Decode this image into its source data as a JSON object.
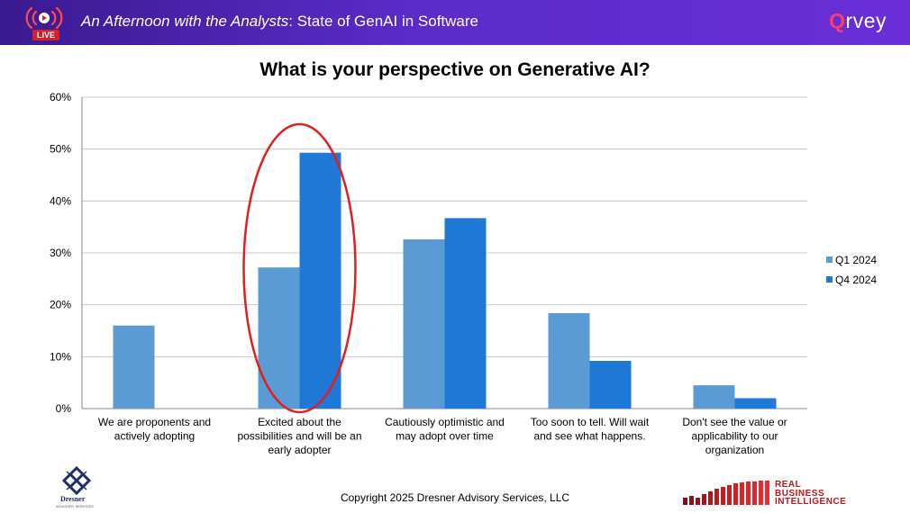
{
  "header": {
    "live_label": "LIVE",
    "title_em": "An Afternoon with the Analysts",
    "title_rest": ": State of GenAI in Software",
    "brand": {
      "first": "Q",
      "rest": "rvey"
    }
  },
  "footer": {
    "copyright": "Copyright 2025 Dresner Advisory Services, LLC",
    "dresner_wordmark": "Dresner",
    "dresner_sub": "ADVISORY SERVICES",
    "rbi_lines": [
      "REAL",
      "BUSINESS",
      "INTELLIGENCE"
    ]
  },
  "colors": {
    "header_start": "#3a1a8f",
    "header_end": "#6a2ed8",
    "series_q1": "#5b9bd5",
    "series_q4": "#1f78d6",
    "highlight": "#e02020",
    "grid": "#c8c8c8"
  },
  "chart_data": {
    "type": "bar",
    "title": "What is your perspective on Generative AI?",
    "xlabel": "",
    "ylabel": "",
    "ylim": [
      0,
      60
    ],
    "y_ticks": [
      "0%",
      "10%",
      "20%",
      "30%",
      "40%",
      "50%",
      "60%"
    ],
    "categories": [
      "We are proponents and actively adopting",
      "Excited about the possibilities and will be an early adopter",
      "Cautiously optimistic and may adopt over time",
      "Too soon to tell. Will wait and see what happens.",
      "Don't see the value or applicability to our organization"
    ],
    "category_lines": [
      [
        "We are proponents and",
        "actively adopting"
      ],
      [
        "Excited about the",
        "possibilities and will be an",
        "early adopter"
      ],
      [
        "Cautiously optimistic and",
        "may adopt over time"
      ],
      [
        "Too soon to tell. Will wait",
        "and see what happens."
      ],
      [
        "Don't see the value or",
        "applicability to our",
        "organization"
      ]
    ],
    "series": [
      {
        "name": "Q1 2024",
        "color": "#5b9bd5",
        "values": [
          16,
          27.2,
          32.6,
          18.4,
          4.5
        ]
      },
      {
        "name": "Q4 2024",
        "color": "#1f78d6",
        "values": [
          null,
          49.3,
          36.7,
          9.2,
          2
        ]
      }
    ],
    "grid": true,
    "legend": "right",
    "highlight_category": 1
  }
}
